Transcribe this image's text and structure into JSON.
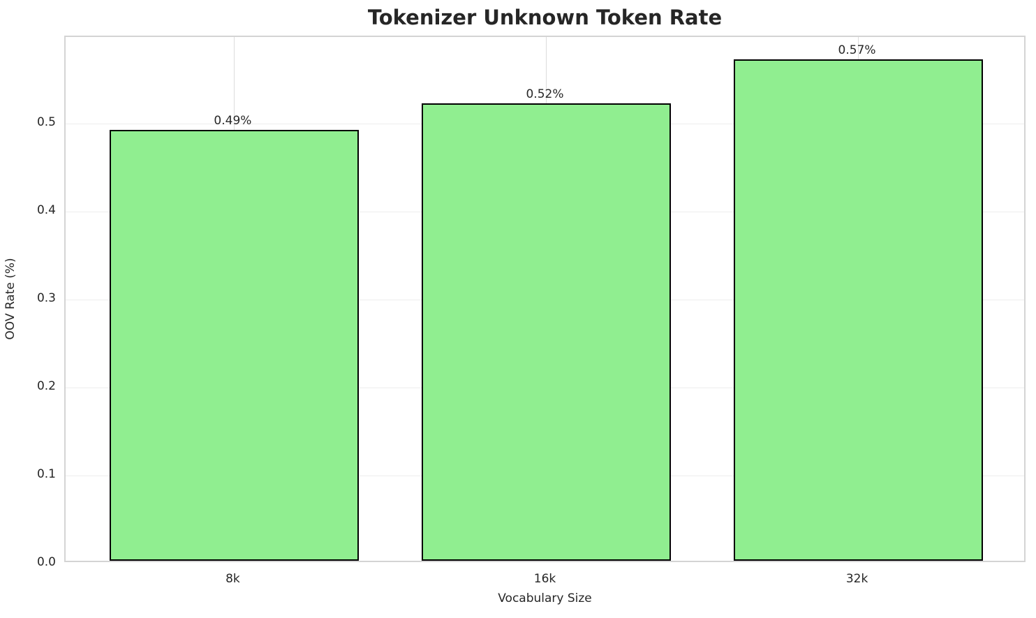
{
  "chart_data": {
    "type": "bar",
    "title": "Tokenizer Unknown Token Rate",
    "xlabel": "Vocabulary Size",
    "ylabel": "OOV Rate (%)",
    "categories": [
      "8k",
      "16k",
      "32k"
    ],
    "values": [
      0.49,
      0.52,
      0.57
    ],
    "bar_labels": [
      "0.49%",
      "0.52%",
      "0.57%"
    ],
    "yticks": [
      0.0,
      0.1,
      0.2,
      0.3,
      0.4,
      0.5
    ],
    "ytick_labels": [
      "0.0",
      "0.1",
      "0.2",
      "0.3",
      "0.4",
      "0.5"
    ],
    "ylim": [
      0,
      0.5985
    ],
    "grid": true,
    "legend": "none",
    "bar_color": "#90EE90",
    "bar_edge_color": "#000000",
    "grid_color": "#ededed",
    "spine_color": "#d4d4d4",
    "text_color": "#262626"
  }
}
